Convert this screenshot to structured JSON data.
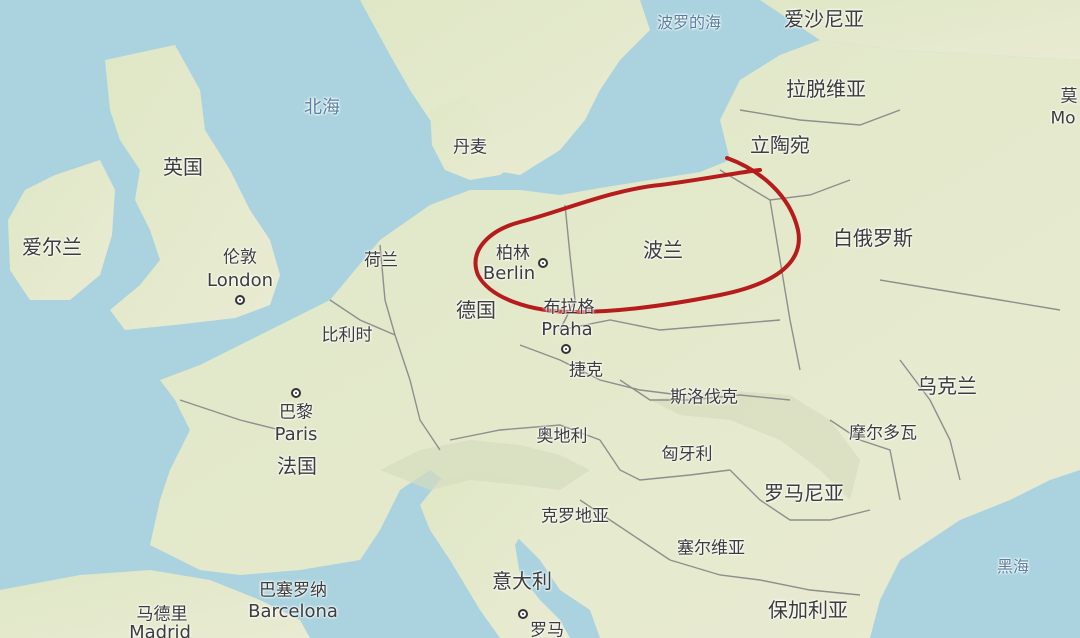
{
  "seas": {
    "north_sea": "北海",
    "baltic_sea": "波罗的海",
    "black_sea": "黑海"
  },
  "countries": {
    "uk": "英国",
    "ireland": "爱尔兰",
    "denmark": "丹麦",
    "netherlands": "荷兰",
    "belgium": "比利时",
    "germany": "德国",
    "poland": "波兰",
    "czech": "捷克",
    "slovakia": "斯洛伐克",
    "austria": "奥地利",
    "hungary": "匈牙利",
    "romania": "罗马尼亚",
    "croatia": "克罗地亚",
    "serbia": "塞尔维亚",
    "bulgaria": "保加利亚",
    "italy": "意大利",
    "france": "法国",
    "estonia": "爱沙尼亚",
    "latvia": "拉脱维亚",
    "lithuania": "立陶宛",
    "belarus": "白俄罗斯",
    "ukraine": "乌克兰",
    "moldova": "摩尔多瓦"
  },
  "cities": {
    "london_cn": "伦敦",
    "london": "London",
    "paris_cn": "巴黎",
    "paris": "Paris",
    "berlin_cn": "柏林",
    "berlin": "Berlin",
    "prague_cn": "布拉格",
    "prague": "Praha",
    "barcelona_cn": "巴塞罗纳",
    "barcelona": "Barcelona",
    "madrid_cn": "马德里",
    "madrid": "Madrid",
    "rome_cn": "罗马",
    "moscow_cn_partial": "莫",
    "moscow_partial": "Mo"
  },
  "colors": {
    "water": "#aad3df",
    "land": "#e6ebcc",
    "annotation_circle": "#b71c1c",
    "border": "#8e8e8e"
  }
}
